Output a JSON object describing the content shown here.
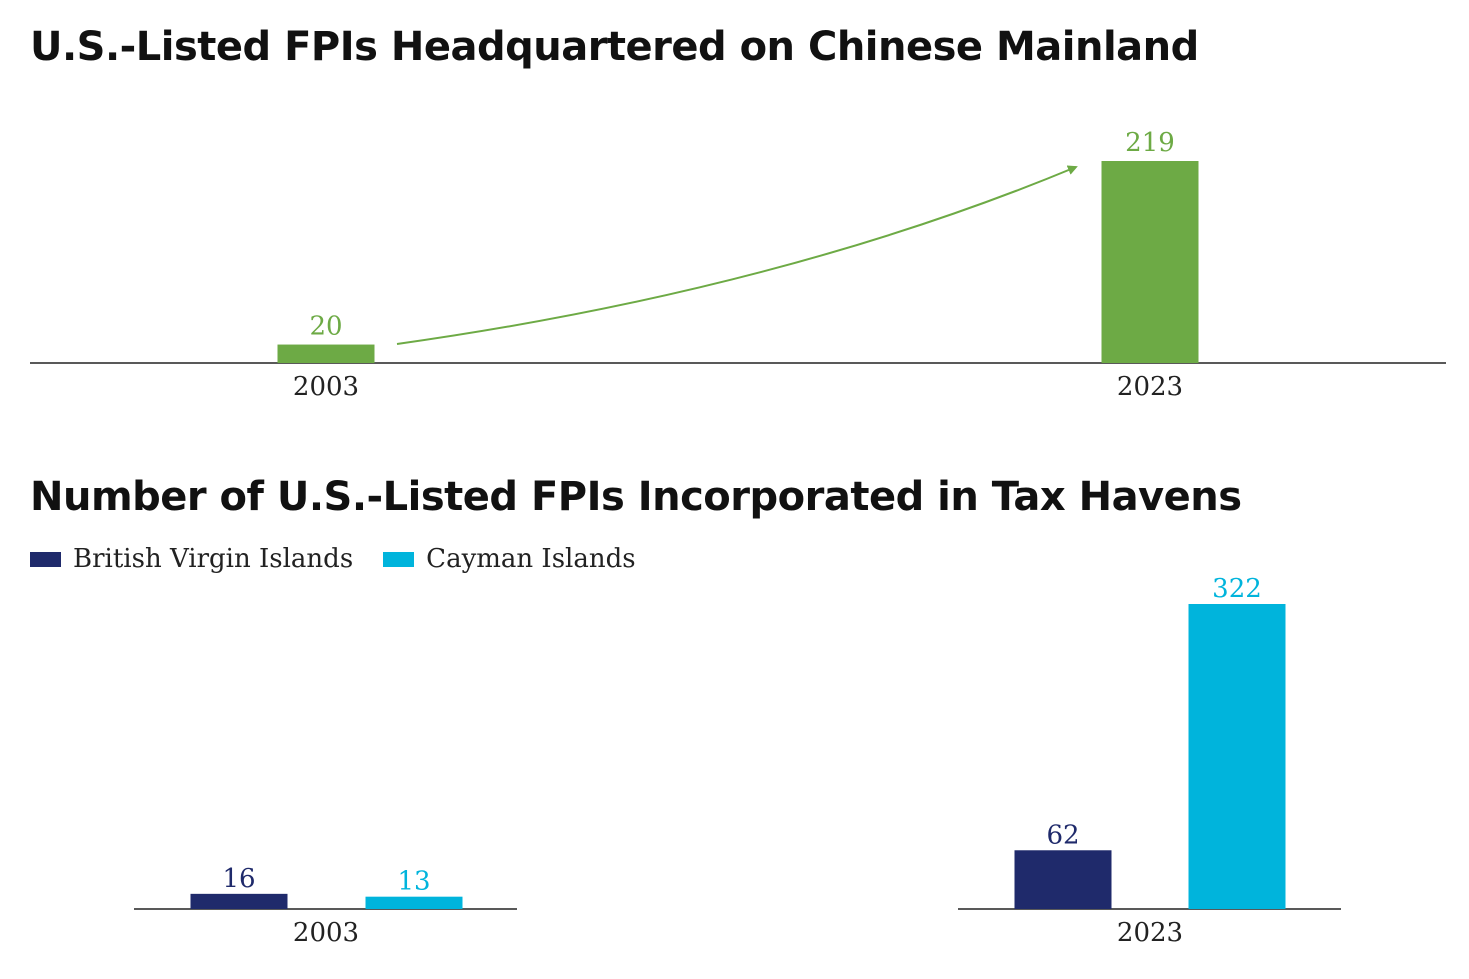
{
  "chart_data": [
    {
      "type": "bar",
      "title": "U.S.-Listed FPIs Headquartered on Chinese Mainland",
      "categories": [
        "2003",
        "2023"
      ],
      "values": [
        20,
        219
      ],
      "color": "#6daa45",
      "annotations": [
        "growth arrow from 2003 to 2023"
      ]
    },
    {
      "type": "bar",
      "title": "Number of U.S.-Listed FPIs Incorporated in Tax Havens",
      "categories": [
        "2003",
        "2023"
      ],
      "series": [
        {
          "name": "British Virgin Islands",
          "values": [
            16,
            62
          ],
          "color": "#1f2a6b"
        },
        {
          "name": "Cayman Islands",
          "values": [
            13,
            322
          ],
          "color": "#00b4dc"
        }
      ],
      "legend": "top-left"
    }
  ]
}
